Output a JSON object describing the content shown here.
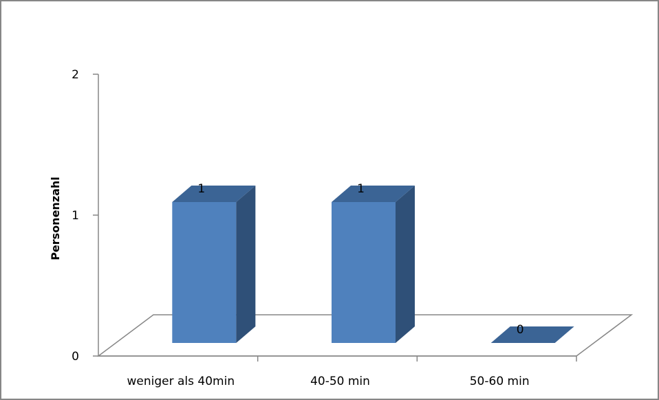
{
  "chart_data": {
    "type": "bar",
    "style": "3d-column",
    "title": "",
    "xlabel": "",
    "ylabel": "Personenzahl",
    "categories": [
      "weniger als 40min",
      "40-50 min",
      "50-60 min"
    ],
    "values": [
      1,
      1,
      0
    ],
    "data_labels": [
      "1",
      "1",
      "0"
    ],
    "ylim": [
      0,
      2
    ],
    "yticks": [
      0,
      1,
      2
    ],
    "ytick_labels": [
      "0",
      "1",
      "2"
    ],
    "grid": false,
    "legend": "none",
    "colors": {
      "bar_front": "#4F81BD",
      "bar_side": "#2F5078",
      "bar_top": "#3B6495",
      "axis": "#868686",
      "frame": "#868686"
    }
  }
}
